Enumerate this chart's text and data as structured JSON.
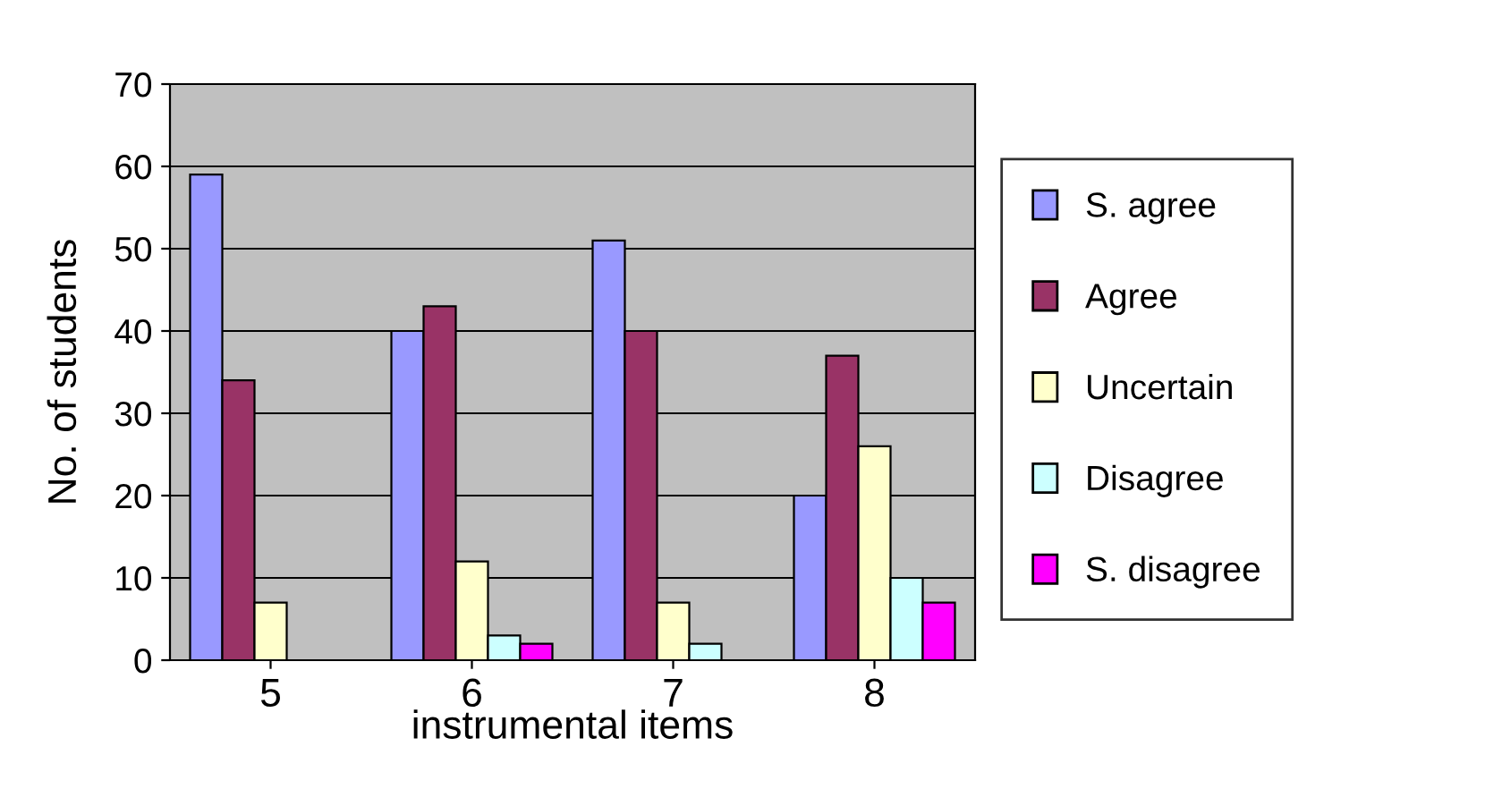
{
  "chart_data": {
    "type": "bar",
    "xlabel": "instrumental items",
    "ylabel": "No. of students",
    "categories": [
      "5",
      "6",
      "7",
      "8"
    ],
    "series": [
      {
        "name": "S. agree",
        "color": "#9999ff",
        "values": [
          59,
          40,
          51,
          20
        ]
      },
      {
        "name": "Agree",
        "color": "#993366",
        "values": [
          34,
          43,
          40,
          37
        ]
      },
      {
        "name": "Uncertain",
        "color": "#ffffcc",
        "values": [
          7,
          12,
          7,
          26
        ]
      },
      {
        "name": "Disagree",
        "color": "#ccffff",
        "values": [
          null,
          3,
          2,
          10
        ]
      },
      {
        "name": "S. disagree",
        "color": "#ff00ff",
        "values": [
          null,
          2,
          null,
          7
        ]
      }
    ],
    "ylim": [
      0,
      70
    ],
    "yticks": [
      0,
      10,
      20,
      30,
      40,
      50,
      60,
      70
    ],
    "grid": "y",
    "legend": "right"
  }
}
